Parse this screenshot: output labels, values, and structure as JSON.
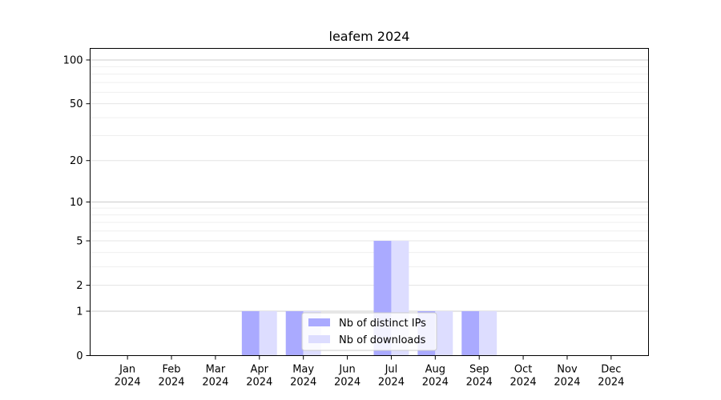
{
  "chart_data": {
    "type": "bar",
    "title": "leafem 2024",
    "xlabel": "",
    "ylabel": "",
    "yscale": "symlog",
    "ylim": [
      0,
      120
    ],
    "yticks": [
      0,
      1,
      2,
      5,
      10,
      20,
      50,
      100
    ],
    "grid": true,
    "legend_position": "lower-center",
    "categories": [
      "Jan\n2024",
      "Feb\n2024",
      "Mar\n2024",
      "Apr\n2024",
      "May\n2024",
      "Jun\n2024",
      "Jul\n2024",
      "Aug\n2024",
      "Sep\n2024",
      "Oct\n2024",
      "Nov\n2024",
      "Dec\n2024"
    ],
    "series": [
      {
        "name": "Nb of distinct IPs",
        "color": "#aaaaff",
        "values": [
          0,
          0,
          0,
          1,
          1,
          0,
          5,
          1,
          1,
          0,
          0,
          0
        ]
      },
      {
        "name": "Nb of downloads",
        "color": "#ddddff",
        "values": [
          0,
          0,
          0,
          1,
          1,
          0,
          5,
          1,
          1,
          0,
          0,
          0
        ]
      }
    ]
  }
}
